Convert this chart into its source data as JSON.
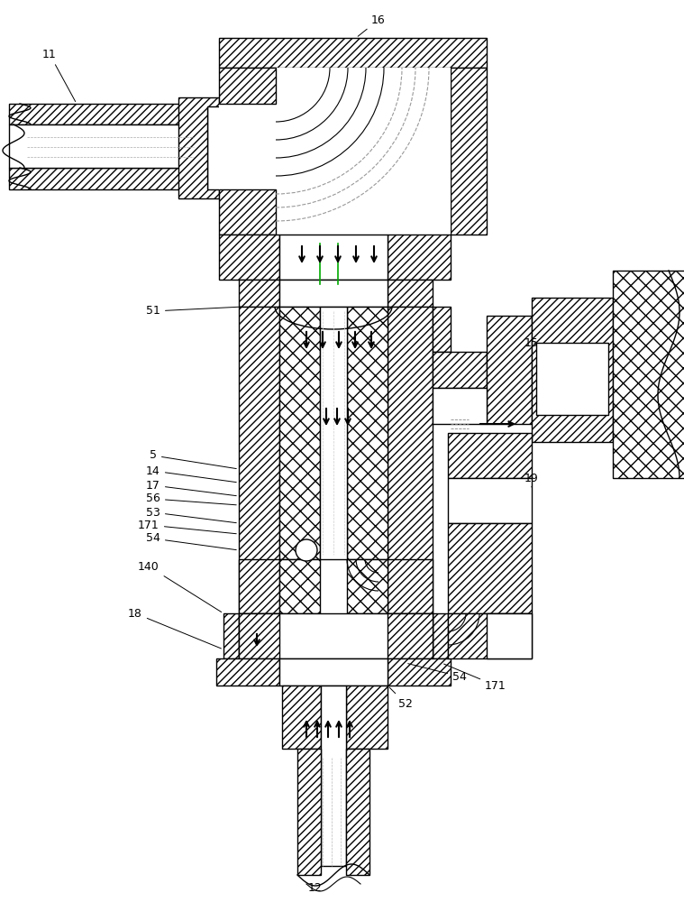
{
  "bg_color": "#ffffff",
  "lc": "#000000",
  "lw": 1.0,
  "fig_w": 7.59,
  "fig_h": 10.0,
  "dpi": 100
}
